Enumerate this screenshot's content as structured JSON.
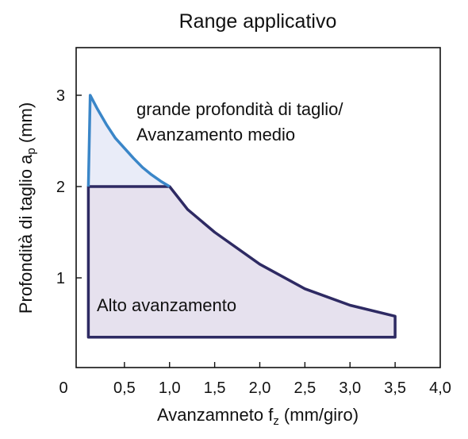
{
  "chart_data": {
    "type": "area",
    "title": "Range applicativo",
    "xlabel": "Avanzamneto f",
    "xlabel_sub": "z",
    "xlabel_unit": " (mm/giro)",
    "ylabel": "Profondità di taglio a",
    "ylabel_sub": "p",
    "ylabel_unit": " (mm)",
    "xlim": [
      0,
      4.0
    ],
    "ylim": [
      0,
      3.5
    ],
    "x_ticks": [
      "0",
      "0,5",
      "1,0",
      "1,5",
      "2,0",
      "2,5",
      "3,0",
      "3,5",
      "4,0"
    ],
    "y_ticks": [
      "1",
      "2",
      "3"
    ],
    "grid": false,
    "series": [
      {
        "name": "grande profondità di taglio/ Avanzamento medio",
        "x": [
          0.1,
          0.12,
          0.2,
          0.3,
          0.4,
          0.5,
          0.6,
          0.7,
          0.8,
          0.9,
          1.0
        ],
        "y": [
          2.0,
          3.0,
          2.85,
          2.68,
          2.53,
          2.42,
          2.31,
          2.21,
          2.13,
          2.06,
          2.0
        ],
        "color": "#3a86c8",
        "fill": "#e9ecf8"
      },
      {
        "name": "Alto avanzamento",
        "x": [
          0.1,
          0.1,
          1.0,
          1.2,
          1.5,
          2.0,
          2.5,
          3.0,
          3.5,
          3.5
        ],
        "y": [
          0.35,
          2.0,
          2.0,
          1.75,
          1.5,
          1.15,
          0.88,
          0.7,
          0.58,
          0.35
        ],
        "color": "#2e2a63",
        "fill": "#e6e1ee"
      }
    ],
    "annotations": [
      {
        "line1": "grande profondità di taglio/",
        "line2": "Avanzamento medio"
      },
      {
        "line1": "Alto avanzamento"
      }
    ]
  }
}
